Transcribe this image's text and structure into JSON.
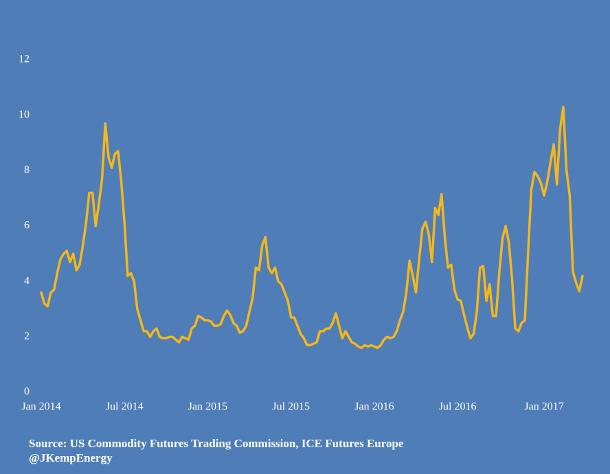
{
  "chart_data": {
    "type": "line",
    "categories": [
      "Jan 2014",
      null,
      null,
      null,
      null,
      null,
      null,
      null,
      null,
      null,
      null,
      null,
      null,
      null,
      null,
      null,
      null,
      null,
      null,
      null,
      null,
      null,
      null,
      null,
      null,
      null,
      "Jul 2014",
      null,
      null,
      null,
      null,
      null,
      null,
      null,
      null,
      null,
      null,
      null,
      null,
      null,
      null,
      null,
      null,
      null,
      null,
      null,
      null,
      null,
      null,
      null,
      null,
      null,
      "Jan 2015",
      null,
      null,
      null,
      null,
      null,
      null,
      null,
      null,
      null,
      null,
      null,
      null,
      null,
      null,
      null,
      null,
      null,
      null,
      null,
      null,
      null,
      null,
      null,
      null,
      null,
      "Jul 2015",
      null,
      null,
      null,
      null,
      null,
      null,
      null,
      null,
      null,
      null,
      null,
      null,
      null,
      null,
      null,
      null,
      null,
      null,
      null,
      null,
      null,
      null,
      null,
      null,
      null,
      "Jan 2016",
      null,
      null,
      null,
      null,
      null,
      null,
      null,
      null,
      null,
      null,
      null,
      null,
      null,
      null,
      null,
      null,
      null,
      null,
      null,
      null,
      null,
      null,
      null,
      null,
      null,
      "Jul 2016",
      null,
      null,
      null,
      null,
      null,
      null,
      null,
      null,
      null,
      null,
      null,
      null,
      null,
      null,
      null,
      null,
      null,
      null,
      null,
      null,
      null,
      null,
      null,
      null,
      null,
      null,
      "Jan 2017",
      null,
      null,
      null,
      null,
      null,
      null,
      null,
      null,
      null,
      null,
      null,
      null
    ],
    "values": [
      3.6,
      3.2,
      3.1,
      3.6,
      3.7,
      4.3,
      4.8,
      5.0,
      5.1,
      4.7,
      5.0,
      4.4,
      4.6,
      5.3,
      6.1,
      7.2,
      7.2,
      6.0,
      6.8,
      7.7,
      9.7,
      8.5,
      8.1,
      8.6,
      8.7,
      7.6,
      6.1,
      4.2,
      4.3,
      4.0,
      3.0,
      2.6,
      2.2,
      2.2,
      2.0,
      2.2,
      2.3,
      2.0,
      1.95,
      1.95,
      2.0,
      2.0,
      1.9,
      1.8,
      2.0,
      1.95,
      1.9,
      2.3,
      2.4,
      2.75,
      2.7,
      2.6,
      2.6,
      2.55,
      2.4,
      2.4,
      2.45,
      2.75,
      2.95,
      2.8,
      2.5,
      2.4,
      2.15,
      2.2,
      2.4,
      2.9,
      3.4,
      4.5,
      4.4,
      5.3,
      5.6,
      4.5,
      4.3,
      4.5,
      4.0,
      3.9,
      3.6,
      3.3,
      2.7,
      2.7,
      2.4,
      2.1,
      1.95,
      1.7,
      1.7,
      1.75,
      1.8,
      2.2,
      2.2,
      2.3,
      2.3,
      2.5,
      2.85,
      2.4,
      1.95,
      2.2,
      2.0,
      1.8,
      1.75,
      1.65,
      1.6,
      1.7,
      1.65,
      1.7,
      1.65,
      1.6,
      1.7,
      1.9,
      2.0,
      1.95,
      2.0,
      2.2,
      2.6,
      2.9,
      3.6,
      4.75,
      4.2,
      3.6,
      4.8,
      5.9,
      6.15,
      5.7,
      4.7,
      6.65,
      6.4,
      7.15,
      5.6,
      4.5,
      4.6,
      3.7,
      3.35,
      3.3,
      2.8,
      2.35,
      1.95,
      2.1,
      2.9,
      4.5,
      4.55,
      3.3,
      3.9,
      2.75,
      2.75,
      4.3,
      5.55,
      6.0,
      5.4,
      4.1,
      2.3,
      2.2,
      2.5,
      2.6,
      5.0,
      7.3,
      7.95,
      7.8,
      7.55,
      7.1,
      7.6,
      8.3,
      8.95,
      7.5,
      9.5,
      10.3,
      8.0,
      7.1,
      4.35,
      3.95,
      3.65,
      4.2
    ],
    "color": "#f5b719",
    "ylim": [
      0,
      12
    ],
    "yticks": [
      0,
      2,
      4,
      6,
      8,
      10,
      12
    ],
    "grid": false,
    "source": "Source: US Commodity Futures Trading Commission, ICE Futures Europe",
    "credit": "@JKempEnergy"
  }
}
